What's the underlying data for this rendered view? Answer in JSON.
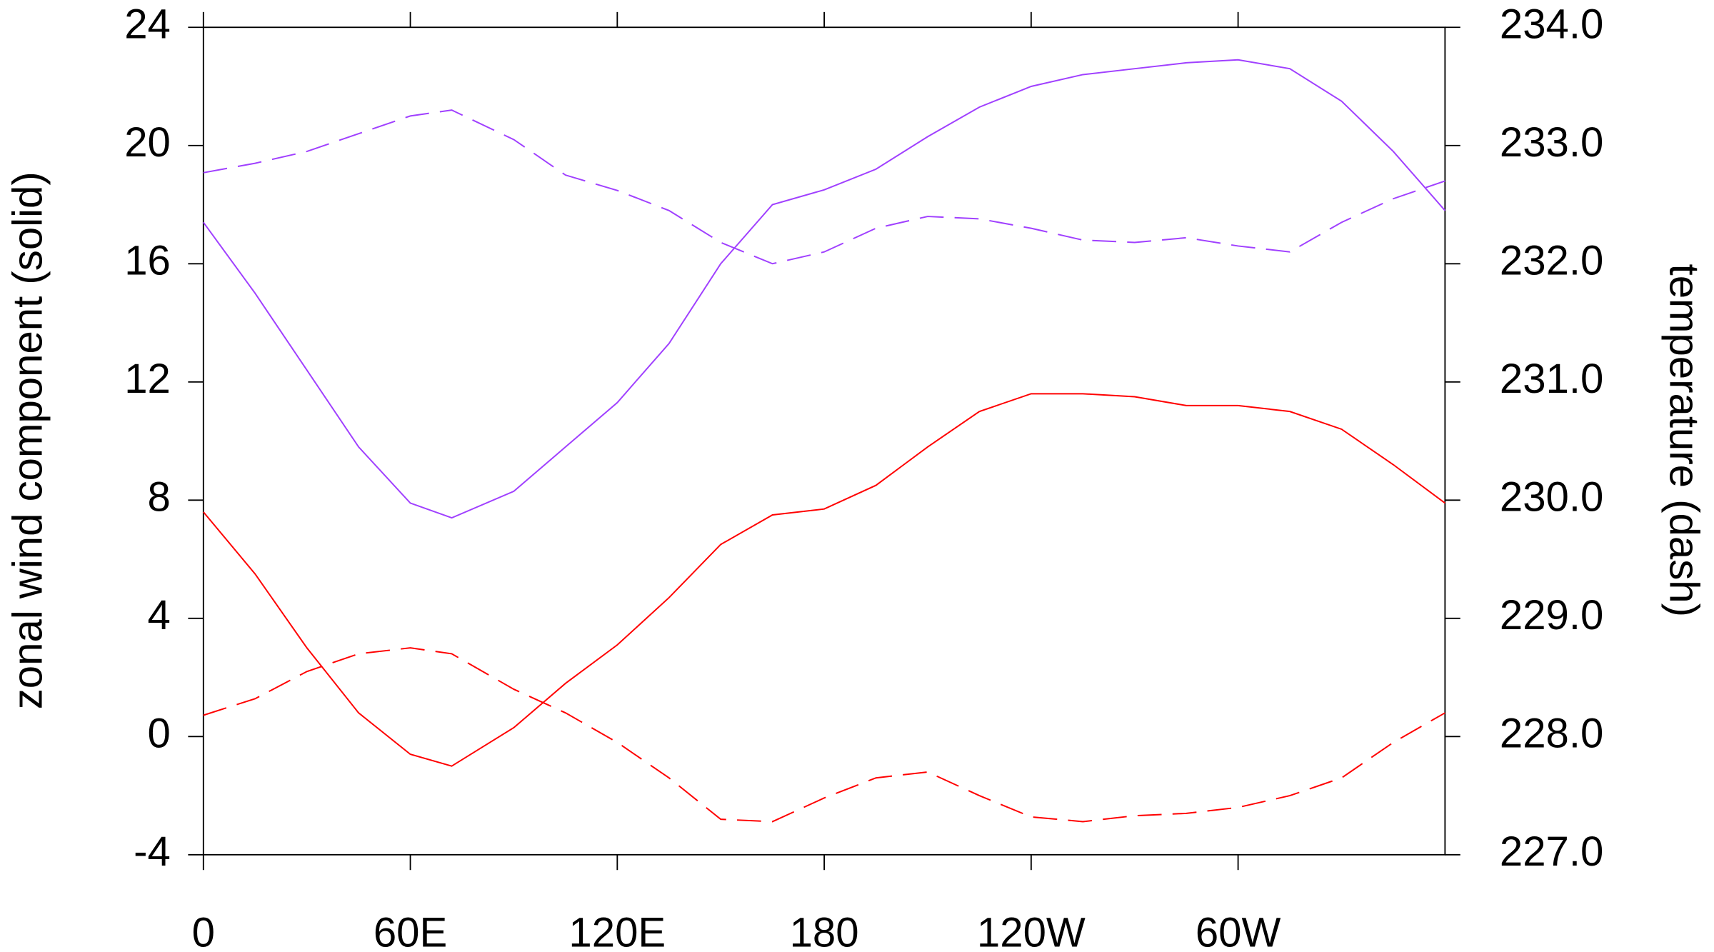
{
  "chart_data": {
    "type": "line",
    "y_label": "zonal wind component (solid)",
    "y2_label": "temperature (dash)",
    "x": [
      0,
      15,
      30,
      45,
      60,
      72,
      90,
      105,
      120,
      135,
      150,
      165,
      180,
      195,
      210,
      225,
      240,
      255,
      270,
      285,
      300,
      315,
      330,
      345,
      360
    ],
    "xlim": [
      0,
      360
    ],
    "xticks": [
      0,
      {
        "value": 60,
        "label": "60E"
      },
      {
        "value": 120,
        "label": "120E"
      },
      {
        "value": 180,
        "label": "180"
      },
      {
        "value": 240,
        "label": "120W"
      },
      {
        "value": 300,
        "label": "60W"
      }
    ],
    "ylim": [
      -4,
      24
    ],
    "yticks": [
      -4,
      0,
      4,
      8,
      12,
      16,
      20,
      24
    ],
    "y2lim": [
      227,
      234
    ],
    "y2ticks": [
      {
        "value": 227,
        "label": "227.0"
      },
      {
        "value": 228,
        "label": "228.0"
      },
      {
        "value": 229,
        "label": "229.0"
      },
      {
        "value": 230,
        "label": "230.0"
      },
      {
        "value": 231,
        "label": "231.0"
      },
      {
        "value": 232,
        "label": "232.0"
      },
      {
        "value": 233,
        "label": "233.0"
      },
      {
        "value": 234,
        "label": "234.0"
      }
    ],
    "series": [
      {
        "color": "#a040ff",
        "dash": false,
        "values": [
          17.4,
          15.0,
          12.4,
          9.8,
          7.9,
          7.4,
          8.3,
          9.8,
          11.3,
          13.3,
          16.0,
          18.0,
          18.5,
          19.2,
          20.3,
          21.3,
          22.0,
          22.4,
          22.6,
          22.8,
          22.9,
          22.6,
          21.5,
          19.8,
          17.8
        ]
      },
      {
        "color": "#ff0000",
        "dash": false,
        "values": [
          7.6,
          5.5,
          3.0,
          0.8,
          -0.6,
          -1.0,
          0.3,
          1.8,
          3.1,
          4.7,
          6.5,
          7.5,
          7.7,
          8.5,
          9.8,
          11.0,
          11.6,
          11.6,
          11.5,
          11.2,
          11.2,
          11.0,
          10.4,
          9.2,
          7.9
        ]
      },
      {
        "color": "#a040ff",
        "dash": true,
        "axis": "y2",
        "values": [
          232.77,
          232.85,
          232.95,
          233.1,
          233.25,
          233.3,
          233.05,
          232.75,
          232.62,
          232.45,
          232.18,
          232.0,
          232.1,
          232.3,
          232.4,
          232.38,
          232.3,
          232.2,
          232.18,
          232.22,
          232.15,
          232.1,
          232.35,
          232.55,
          232.7
        ]
      },
      {
        "color": "#ff0000",
        "dash": true,
        "axis": "y2",
        "values": [
          228.18,
          228.32,
          228.55,
          228.7,
          228.75,
          228.7,
          228.4,
          228.2,
          227.95,
          227.65,
          227.3,
          227.28,
          227.48,
          227.65,
          227.7,
          227.5,
          227.32,
          227.28,
          227.33,
          227.35,
          227.4,
          227.5,
          227.65,
          227.95,
          228.2
        ]
      }
    ]
  }
}
